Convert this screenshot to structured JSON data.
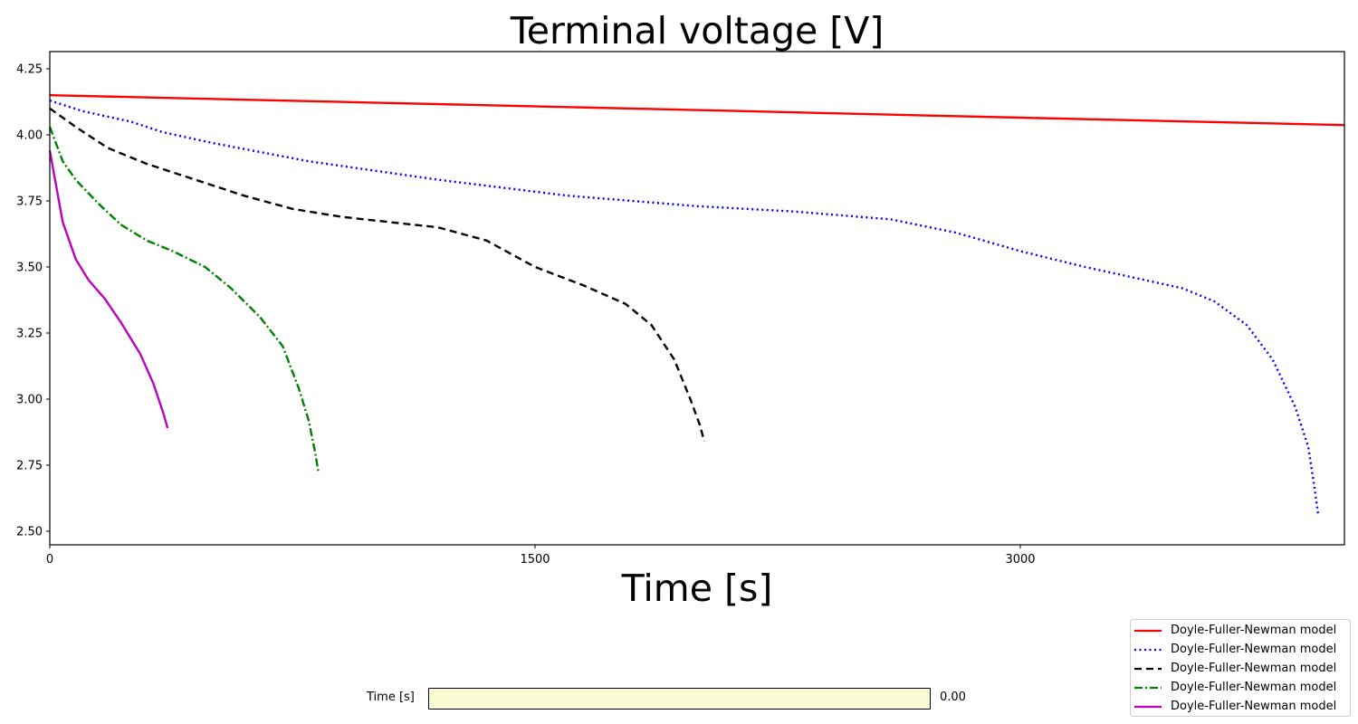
{
  "chart_data": {
    "type": "line",
    "title": "Terminal voltage [V]",
    "xlabel": "Time [s]",
    "ylabel": "",
    "xlim": [
      0,
      4000
    ],
    "ylim": [
      2.45,
      4.32
    ],
    "xticks": [
      0,
      1500,
      3000
    ],
    "xtick_labels": [
      "0",
      "1500",
      "3000"
    ],
    "yticks": [
      2.5,
      2.75,
      3.0,
      3.25,
      3.5,
      3.75,
      4.0,
      4.25
    ],
    "ytick_labels": [
      "2.50",
      "2.75",
      "3.00",
      "3.25",
      "3.50",
      "3.75",
      "4.00",
      "4.25"
    ],
    "grid": false,
    "legend_position": "lower right (outside, below axes)",
    "series": [
      {
        "name": "Doyle-Fuller-Newman model",
        "color": "#ff0000",
        "linestyle": "solid",
        "x": [
          0,
          1000,
          2000,
          3000,
          4002
        ],
        "y": [
          4.15,
          4.122,
          4.094,
          4.065,
          4.037
        ]
      },
      {
        "name": "Doyle-Fuller-Newman model",
        "color": "#0000ff",
        "linestyle": "dotted",
        "x": [
          0,
          100,
          250,
          350,
          500,
          800,
          1200,
          1600,
          2000,
          2300,
          2600,
          2800,
          3000,
          3200,
          3350,
          3500,
          3600,
          3700,
          3780,
          3850,
          3890,
          3910,
          3921
        ],
        "y": [
          4.13,
          4.09,
          4.05,
          4.01,
          3.97,
          3.9,
          3.83,
          3.77,
          3.73,
          3.71,
          3.68,
          3.63,
          3.56,
          3.5,
          3.46,
          3.42,
          3.37,
          3.28,
          3.15,
          2.97,
          2.82,
          2.66,
          2.56
        ]
      },
      {
        "name": "Doyle-Fuller-Newman model",
        "color": "#000000",
        "linestyle": "dashed",
        "x": [
          0,
          80,
          180,
          300,
          450,
          600,
          750,
          900,
          1050,
          1200,
          1350,
          1500,
          1650,
          1780,
          1860,
          1930,
          1980,
          2010,
          2023
        ],
        "y": [
          4.1,
          4.03,
          3.95,
          3.89,
          3.83,
          3.77,
          3.72,
          3.69,
          3.67,
          3.65,
          3.6,
          3.5,
          3.43,
          3.36,
          3.28,
          3.15,
          3.0,
          2.9,
          2.84
        ],
        "note": "approximate"
      },
      {
        "name": "Doyle-Fuller-Newman model",
        "color": "#008000",
        "linestyle": "dashdot",
        "x": [
          0,
          40,
          80,
          150,
          220,
          300,
          380,
          480,
          560,
          650,
          720,
          770,
          800,
          820,
          831
        ],
        "y": [
          4.03,
          3.9,
          3.83,
          3.74,
          3.66,
          3.6,
          3.56,
          3.5,
          3.42,
          3.31,
          3.2,
          3.04,
          2.92,
          2.8,
          2.72
        ]
      },
      {
        "name": "Doyle-Fuller-Newman model",
        "color": "#bf00bf",
        "linestyle": "solid",
        "x": [
          0,
          40,
          80,
          120,
          170,
          220,
          280,
          320,
          350,
          364
        ],
        "y": [
          3.94,
          3.67,
          3.53,
          3.45,
          3.38,
          3.29,
          3.17,
          3.06,
          2.95,
          2.89
        ]
      }
    ]
  },
  "legend": {
    "items": [
      {
        "label": "Doyle-Fuller-Newman model",
        "color": "#ff0000",
        "dash": ""
      },
      {
        "label": "Doyle-Fuller-Newman model",
        "color": "#0000ff",
        "dash": "2,3.5"
      },
      {
        "label": "Doyle-Fuller-Newman model",
        "color": "#000000",
        "dash": "8,5"
      },
      {
        "label": "Doyle-Fuller-Newman model",
        "color": "#008000",
        "dash": "9,3,2,3"
      },
      {
        "label": "Doyle-Fuller-Newman model",
        "color": "#bf00bf",
        "dash": ""
      }
    ]
  },
  "slider": {
    "label": "Time [s]",
    "value": "0.00",
    "fill_color": "#fafad2"
  }
}
